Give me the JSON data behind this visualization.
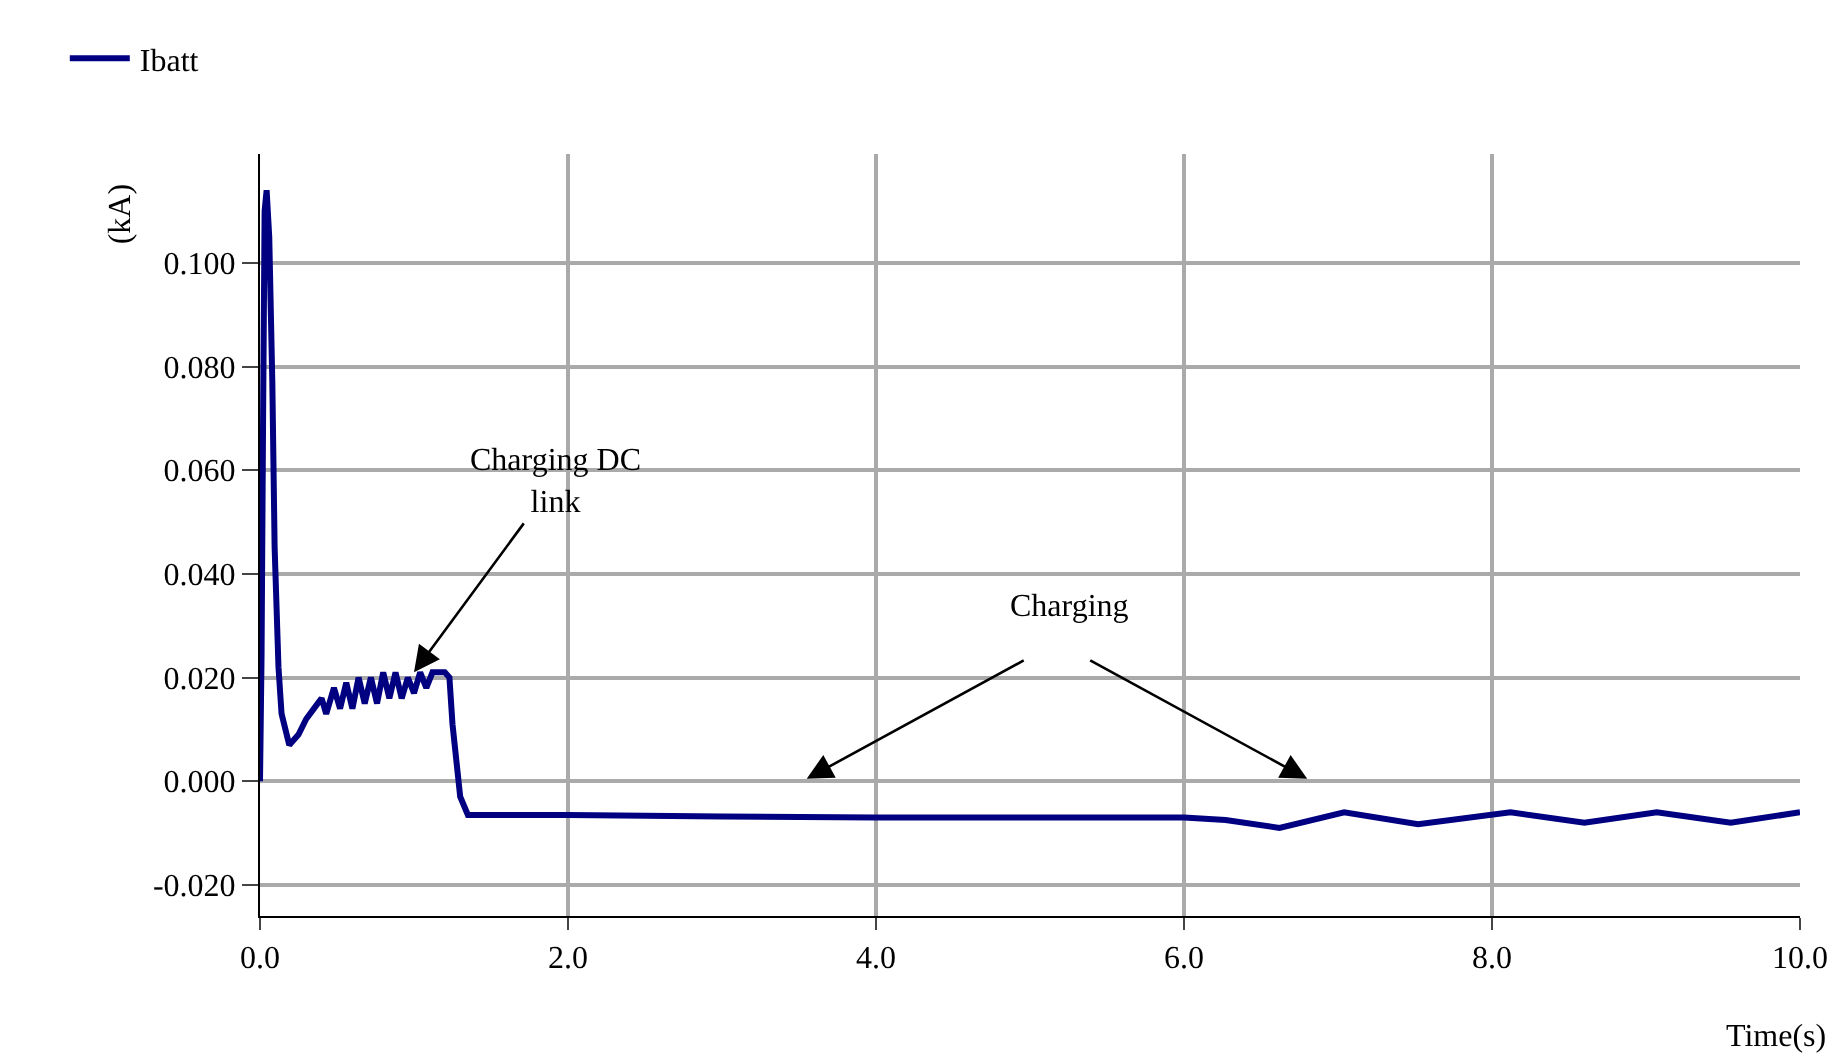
{
  "chart_data": {
    "type": "line",
    "xlabel": "Time(s)",
    "ylabel": "(kA)",
    "legend": "top left",
    "grid": true,
    "line_style": "solid",
    "xlim": [
      0,
      10
    ],
    "ylim": [
      -0.026,
      0.121
    ],
    "xticks": [
      {
        "value": 0,
        "label": "0.0"
      },
      {
        "value": 2,
        "label": "2.0"
      },
      {
        "value": 4,
        "label": "4.0"
      },
      {
        "value": 6,
        "label": "6.0"
      },
      {
        "value": 8,
        "label": "8.0"
      },
      {
        "value": 10,
        "label": "10.0"
      }
    ],
    "yticks": [
      {
        "value": -0.02,
        "label": "-0.020"
      },
      {
        "value": 0,
        "label": "0.000"
      },
      {
        "value": 0.02,
        "label": "0.020"
      },
      {
        "value": 0.04,
        "label": "0.040"
      },
      {
        "value": 0.06,
        "label": "0.060"
      },
      {
        "value": 0.08,
        "label": "0.080"
      },
      {
        "value": 0.1,
        "label": "0.100"
      }
    ],
    "annotations": [
      {
        "text": "Charging DC\nlink",
        "x": 1.0,
        "y": 0.021
      },
      "Charging"
    ],
    "series": [
      {
        "name": "Ibatt",
        "color": "#000080",
        "x": [
          0,
          0.01,
          0.02,
          0.03,
          0.043,
          0.06,
          0.08,
          0.095,
          0.12,
          0.14,
          0.19,
          0.25,
          0.3,
          0.35,
          0.4,
          0.43,
          0.48,
          0.52,
          0.56,
          0.6,
          0.64,
          0.68,
          0.72,
          0.76,
          0.8,
          0.84,
          0.88,
          0.92,
          0.96,
          1.0,
          1.04,
          1.08,
          1.12,
          1.16,
          1.2,
          1.23,
          1.25,
          1.3,
          1.35,
          2.0,
          3.0,
          4.0,
          5.0,
          6.0,
          6.27,
          6.62,
          7.04,
          7.52,
          8.12,
          8.6,
          9.07,
          9.55,
          10.0
        ],
        "values": [
          0,
          0.024,
          0.07,
          0.11,
          0.114,
          0.105,
          0.077,
          0.045,
          0.022,
          0.013,
          0.007,
          0.009,
          0.012,
          0.014,
          0.016,
          0.013,
          0.018,
          0.014,
          0.019,
          0.014,
          0.02,
          0.015,
          0.02,
          0.015,
          0.021,
          0.016,
          0.021,
          0.016,
          0.02,
          0.017,
          0.021,
          0.018,
          0.021,
          0.021,
          0.021,
          0.02,
          0.011,
          -0.003,
          -0.0065,
          -0.0065,
          -0.0068,
          -0.007,
          -0.007,
          -0.007,
          -0.0075,
          -0.009,
          -0.006,
          -0.0083,
          -0.006,
          -0.008,
          -0.006,
          -0.008,
          -0.006
        ]
      }
    ]
  }
}
